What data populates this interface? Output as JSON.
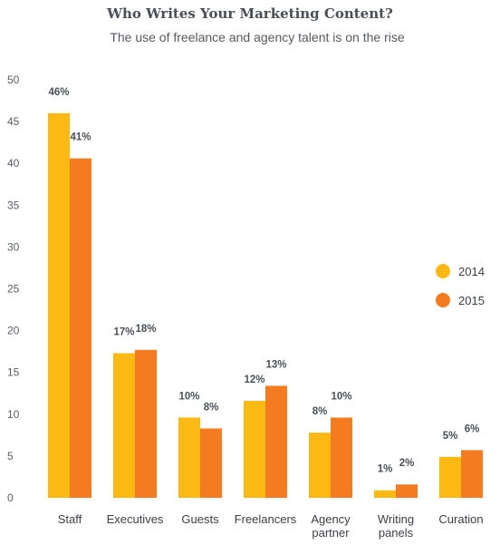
{
  "chart_data": {
    "type": "bar",
    "title": "Who Writes Your Marketing Content?",
    "subtitle": "The use of freelance and agency talent is on the rise",
    "categories": [
      [
        "Staff"
      ],
      [
        "Executives"
      ],
      [
        "Guests"
      ],
      [
        "Freelancers"
      ],
      [
        "Agency",
        "partner"
      ],
      [
        "Writing",
        "panels"
      ],
      [
        "Curation"
      ]
    ],
    "series": [
      {
        "name": "2014",
        "color": "#FDB913",
        "values": [
          46,
          17.3,
          9.6,
          11.6,
          7.8,
          0.9,
          4.9
        ],
        "labels": [
          "46%",
          "17%",
          "10%",
          "12%",
          "8%",
          "1%",
          "5%"
        ]
      },
      {
        "name": "2015",
        "color": "#F47B20",
        "values": [
          40.6,
          17.7,
          8.3,
          13.4,
          9.6,
          1.6,
          5.7
        ],
        "labels": [
          "41%",
          "18%",
          "8%",
          "13%",
          "10%",
          "2%",
          "6%"
        ]
      }
    ],
    "ylim": [
      0,
      50
    ],
    "yticks": [
      0,
      5,
      10,
      15,
      20,
      25,
      30,
      35,
      40,
      45,
      50
    ],
    "xlabel": "",
    "ylabel": "",
    "legend_position": "right",
    "grid": false
  }
}
